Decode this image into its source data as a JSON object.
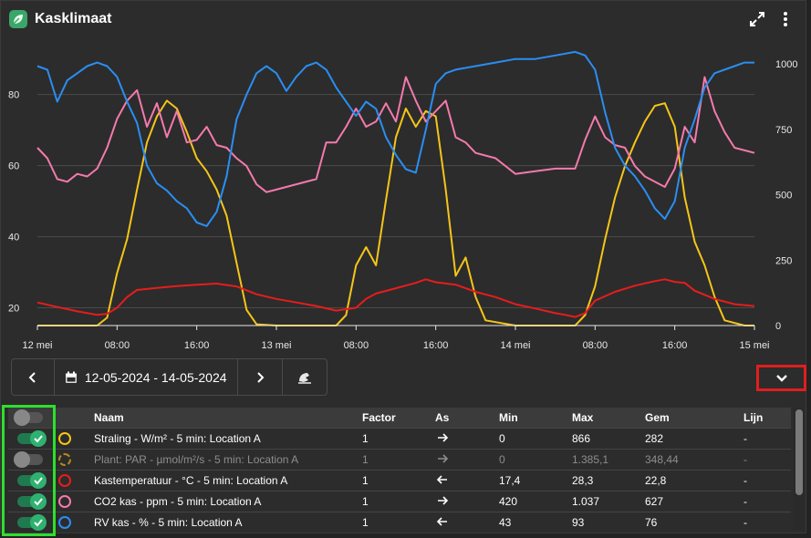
{
  "header": {
    "title": "Kasklimaat",
    "expand_icon": "expand-icon",
    "menu_icon": "more-vertical-icon"
  },
  "toolbar": {
    "date_range": "12-05-2024 - 14-05-2024"
  },
  "table": {
    "headers": [
      "Naam",
      "Factor",
      "As",
      "Min",
      "Max",
      "Gem",
      "Lijn"
    ],
    "rows": [
      {
        "enabled": true,
        "color": "#f5c518",
        "dashed": false,
        "name": "Straling - W/m² - 5 min: Location A",
        "factor": "1",
        "axis": "right",
        "min": "0",
        "max": "866",
        "avg": "282",
        "line": "-"
      },
      {
        "enabled": false,
        "color": "#b8881c",
        "dashed": true,
        "name": "Plant: PAR - µmol/m²/s - 5 min: Location A",
        "factor": "1",
        "axis": "right",
        "min": "0",
        "max": "1.385,1",
        "avg": "348,44",
        "line": "-"
      },
      {
        "enabled": true,
        "color": "#e81c1c",
        "dashed": false,
        "name": "Kastemperatuur - °C - 5 min: Location A",
        "factor": "1",
        "axis": "left",
        "min": "17,4",
        "max": "28,3",
        "avg": "22,8",
        "line": "-"
      },
      {
        "enabled": true,
        "color": "#f47aac",
        "dashed": false,
        "name": "CO2 kas - ppm - 5 min: Location A",
        "factor": "1",
        "axis": "right",
        "min": "420",
        "max": "1.037",
        "avg": "627",
        "line": "-"
      },
      {
        "enabled": true,
        "color": "#2a8ef2",
        "dashed": false,
        "name": "RV kas - % - 5 min: Location A",
        "factor": "1",
        "axis": "left",
        "min": "43",
        "max": "93",
        "avg": "76",
        "line": "-"
      }
    ]
  },
  "chart_data": {
    "type": "line",
    "x_ticks": [
      "12 mei",
      "08:00",
      "16:00",
      "13 mei",
      "08:00",
      "16:00",
      "14 mei",
      "08:00",
      "16:00",
      "15 mei"
    ],
    "x_range_hours": [
      0,
      72
    ],
    "y_left": {
      "ticks": [
        20,
        40,
        60,
        80
      ],
      "range": [
        15,
        93
      ]
    },
    "y_right": {
      "ticks": [
        0,
        250,
        500,
        750,
        1000
      ],
      "range": [
        0,
        1060
      ]
    },
    "grid": true,
    "series": [
      {
        "axis": "right",
        "color": "#f5c518",
        "points": [
          [
            0,
            0
          ],
          [
            3,
            0
          ],
          [
            6,
            0
          ],
          [
            7,
            30
          ],
          [
            8,
            200
          ],
          [
            9,
            330
          ],
          [
            10,
            520
          ],
          [
            11,
            700
          ],
          [
            12,
            800
          ],
          [
            13,
            860
          ],
          [
            14,
            830
          ],
          [
            15,
            740
          ],
          [
            16,
            640
          ],
          [
            17,
            590
          ],
          [
            18,
            520
          ],
          [
            19,
            420
          ],
          [
            20,
            240
          ],
          [
            21,
            60
          ],
          [
            22,
            5
          ],
          [
            24,
            0
          ],
          [
            28,
            0
          ],
          [
            30,
            0
          ],
          [
            31,
            40
          ],
          [
            32,
            230
          ],
          [
            33,
            300
          ],
          [
            34,
            230
          ],
          [
            35,
            480
          ],
          [
            36,
            720
          ],
          [
            37,
            830
          ],
          [
            38,
            760
          ],
          [
            39,
            820
          ],
          [
            40,
            800
          ],
          [
            41,
            520
          ],
          [
            42,
            190
          ],
          [
            43,
            260
          ],
          [
            44,
            110
          ],
          [
            45,
            20
          ],
          [
            48,
            0
          ],
          [
            54,
            0
          ],
          [
            55,
            40
          ],
          [
            56,
            150
          ],
          [
            57,
            330
          ],
          [
            58,
            490
          ],
          [
            59,
            610
          ],
          [
            60,
            700
          ],
          [
            61,
            780
          ],
          [
            62,
            840
          ],
          [
            63,
            850
          ],
          [
            64,
            760
          ],
          [
            65,
            490
          ],
          [
            66,
            320
          ],
          [
            67,
            230
          ],
          [
            68,
            110
          ],
          [
            69,
            20
          ],
          [
            71,
            0
          ],
          [
            72,
            0
          ]
        ]
      },
      {
        "axis": "left",
        "color": "#e81c1c",
        "points": [
          [
            0,
            21.5
          ],
          [
            2,
            20.2
          ],
          [
            4,
            19
          ],
          [
            6,
            18
          ],
          [
            7,
            18.3
          ],
          [
            8,
            20
          ],
          [
            9,
            23
          ],
          [
            10,
            25
          ],
          [
            12,
            25.6
          ],
          [
            14,
            26.1
          ],
          [
            16,
            26.5
          ],
          [
            18,
            26.8
          ],
          [
            20,
            26
          ],
          [
            22,
            23.8
          ],
          [
            24,
            22.5
          ],
          [
            26,
            21.5
          ],
          [
            28,
            20.5
          ],
          [
            30,
            19.2
          ],
          [
            32,
            20
          ],
          [
            33,
            22.5
          ],
          [
            34,
            24
          ],
          [
            36,
            25.5
          ],
          [
            38,
            27
          ],
          [
            39,
            28
          ],
          [
            40,
            27.2
          ],
          [
            42,
            26.5
          ],
          [
            44,
            24.5
          ],
          [
            46,
            23
          ],
          [
            48,
            21
          ],
          [
            50,
            19.8
          ],
          [
            52,
            18.5
          ],
          [
            53,
            18
          ],
          [
            54,
            17.4
          ],
          [
            55,
            18.5
          ],
          [
            56,
            22
          ],
          [
            58,
            24.5
          ],
          [
            60,
            26.2
          ],
          [
            62,
            27.5
          ],
          [
            63,
            28
          ],
          [
            64,
            27.3
          ],
          [
            65,
            27
          ],
          [
            66,
            24.8
          ],
          [
            68,
            22.5
          ],
          [
            70,
            21
          ],
          [
            72,
            20.5
          ]
        ]
      },
      {
        "axis": "right",
        "color": "#f47aac",
        "points": [
          [
            0,
            680
          ],
          [
            1,
            640
          ],
          [
            2,
            560
          ],
          [
            3,
            550
          ],
          [
            4,
            580
          ],
          [
            5,
            570
          ],
          [
            6,
            600
          ],
          [
            7,
            680
          ],
          [
            8,
            790
          ],
          [
            9,
            860
          ],
          [
            10,
            900
          ],
          [
            11,
            760
          ],
          [
            12,
            850
          ],
          [
            13,
            720
          ],
          [
            14,
            820
          ],
          [
            15,
            700
          ],
          [
            16,
            710
          ],
          [
            17,
            760
          ],
          [
            18,
            690
          ],
          [
            19,
            680
          ],
          [
            20,
            640
          ],
          [
            21,
            610
          ],
          [
            22,
            540
          ],
          [
            23,
            510
          ],
          [
            24,
            520
          ],
          [
            26,
            540
          ],
          [
            28,
            560
          ],
          [
            29,
            700
          ],
          [
            30,
            700
          ],
          [
            31,
            760
          ],
          [
            32,
            830
          ],
          [
            33,
            760
          ],
          [
            34,
            780
          ],
          [
            35,
            850
          ],
          [
            36,
            780
          ],
          [
            37,
            950
          ],
          [
            38,
            860
          ],
          [
            39,
            780
          ],
          [
            40,
            820
          ],
          [
            41,
            860
          ],
          [
            42,
            720
          ],
          [
            43,
            700
          ],
          [
            44,
            660
          ],
          [
            46,
            640
          ],
          [
            48,
            580
          ],
          [
            50,
            590
          ],
          [
            52,
            600
          ],
          [
            54,
            600
          ],
          [
            55,
            710
          ],
          [
            56,
            800
          ],
          [
            57,
            720
          ],
          [
            58,
            690
          ],
          [
            59,
            680
          ],
          [
            60,
            610
          ],
          [
            61,
            570
          ],
          [
            62,
            550
          ],
          [
            63,
            530
          ],
          [
            64,
            600
          ],
          [
            65,
            760
          ],
          [
            66,
            700
          ],
          [
            67,
            950
          ],
          [
            68,
            820
          ],
          [
            69,
            740
          ],
          [
            70,
            680
          ],
          [
            72,
            660
          ]
        ]
      },
      {
        "axis": "left",
        "color": "#2a8ef2",
        "points": [
          [
            0,
            88
          ],
          [
            1,
            87
          ],
          [
            2,
            78
          ],
          [
            3,
            84
          ],
          [
            4,
            86
          ],
          [
            5,
            88
          ],
          [
            6,
            89
          ],
          [
            7,
            88
          ],
          [
            8,
            85
          ],
          [
            9,
            78
          ],
          [
            10,
            72
          ],
          [
            11,
            60
          ],
          [
            12,
            55
          ],
          [
            13,
            53
          ],
          [
            14,
            50
          ],
          [
            15,
            48
          ],
          [
            16,
            44
          ],
          [
            17,
            43
          ],
          [
            18,
            47
          ],
          [
            19,
            57
          ],
          [
            20,
            73
          ],
          [
            21,
            80
          ],
          [
            22,
            86
          ],
          [
            23,
            88
          ],
          [
            24,
            86
          ],
          [
            25,
            81
          ],
          [
            26,
            85
          ],
          [
            27,
            88
          ],
          [
            28,
            89
          ],
          [
            29,
            87
          ],
          [
            30,
            82
          ],
          [
            31,
            78
          ],
          [
            32,
            74
          ],
          [
            33,
            78
          ],
          [
            34,
            76
          ],
          [
            35,
            68
          ],
          [
            36,
            63
          ],
          [
            37,
            59
          ],
          [
            38,
            58
          ],
          [
            39,
            70
          ],
          [
            40,
            83
          ],
          [
            41,
            86
          ],
          [
            42,
            87
          ],
          [
            44,
            88
          ],
          [
            46,
            89
          ],
          [
            48,
            90
          ],
          [
            50,
            90
          ],
          [
            52,
            91
          ],
          [
            54,
            92
          ],
          [
            55,
            91
          ],
          [
            56,
            87
          ],
          [
            57,
            75
          ],
          [
            58,
            65
          ],
          [
            59,
            60
          ],
          [
            60,
            57
          ],
          [
            61,
            53
          ],
          [
            62,
            48
          ],
          [
            63,
            45
          ],
          [
            64,
            50
          ],
          [
            65,
            65
          ],
          [
            66,
            73
          ],
          [
            67,
            82
          ],
          [
            68,
            86
          ],
          [
            70,
            88
          ],
          [
            71,
            89
          ],
          [
            72,
            89
          ]
        ]
      }
    ]
  }
}
